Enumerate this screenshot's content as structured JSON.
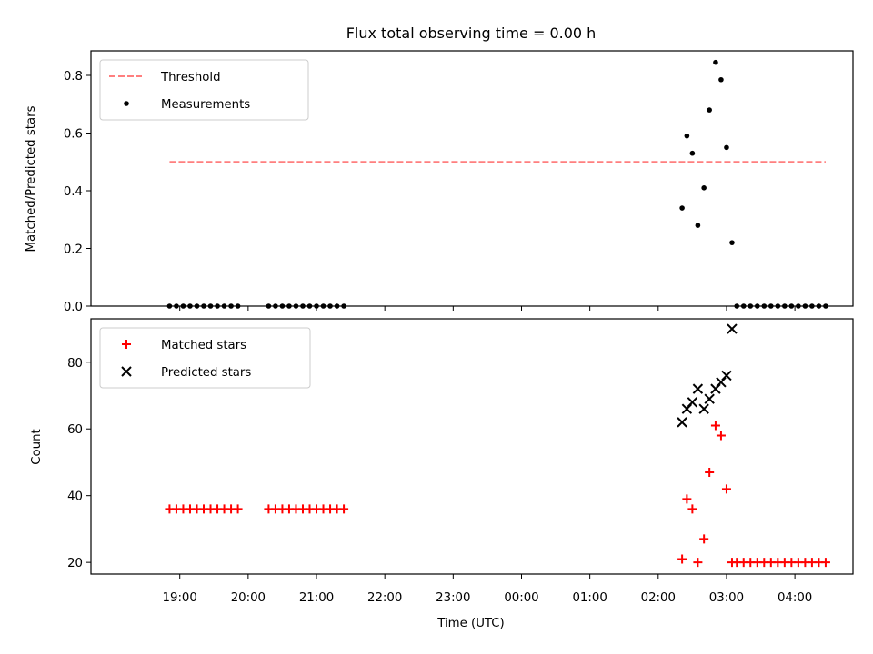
{
  "chart_data": [
    {
      "type": "scatter",
      "title": "Flux total observing time = 0.00 h",
      "xlabel": "",
      "ylabel": "Matched/Predicted stars",
      "ylim": [
        0,
        0.885
      ],
      "yticks": [
        0.0,
        0.2,
        0.4,
        0.6,
        0.8
      ],
      "ytick_labels": [
        "0.0",
        "0.2",
        "0.4",
        "0.6",
        "0.8"
      ],
      "legend": {
        "placement": "top-left",
        "entries": [
          "Threshold",
          "Measurements"
        ]
      },
      "threshold": {
        "name": "Threshold",
        "value": 0.5,
        "x_start": 18.85,
        "x_end": 28.45,
        "color": "#ff7f7f",
        "style": "dashed"
      },
      "series": [
        {
          "name": "Measurements",
          "color": "#000000",
          "marker": "dot",
          "x": [
            18.85,
            18.95,
            19.05,
            19.15,
            19.25,
            19.35,
            19.45,
            19.55,
            19.65,
            19.75,
            19.85,
            20.3,
            20.4,
            20.5,
            20.6,
            20.7,
            20.8,
            20.9,
            21.0,
            21.1,
            21.2,
            21.3,
            21.4,
            26.35,
            26.42,
            26.5,
            26.58,
            26.67,
            26.75,
            26.84,
            26.92,
            27.0,
            27.08,
            27.15,
            27.25,
            27.35,
            27.45,
            27.55,
            27.65,
            27.75,
            27.85,
            27.95,
            28.05,
            28.15,
            28.25,
            28.35,
            28.45
          ],
          "y": [
            0,
            0,
            0,
            0,
            0,
            0,
            0,
            0,
            0,
            0,
            0,
            0,
            0,
            0,
            0,
            0,
            0,
            0,
            0,
            0,
            0,
            0,
            0,
            0.34,
            0.59,
            0.53,
            0.28,
            0.41,
            0.68,
            0.845,
            0.785,
            0.55,
            0.22,
            0,
            0,
            0,
            0,
            0,
            0,
            0,
            0,
            0,
            0,
            0,
            0,
            0,
            0
          ]
        }
      ]
    },
    {
      "type": "scatter",
      "title": "",
      "xlabel": "Time (UTC)",
      "ylabel": "Count",
      "ylim": [
        16.5,
        93
      ],
      "yticks": [
        20,
        40,
        60,
        80
      ],
      "ytick_labels": [
        "20",
        "40",
        "60",
        "80"
      ],
      "xlim": [
        17.7,
        28.85
      ],
      "xticks": [
        19,
        20,
        21,
        22,
        23,
        24,
        25,
        26,
        27,
        28
      ],
      "xtick_labels": [
        "19:00",
        "20:00",
        "21:00",
        "22:00",
        "23:00",
        "00:00",
        "01:00",
        "02:00",
        "03:00",
        "04:00"
      ],
      "legend": {
        "placement": "top-left",
        "entries": [
          "Matched stars",
          "Predicted stars"
        ]
      },
      "series": [
        {
          "name": "Matched stars",
          "color": "#ff0000",
          "marker": "plus",
          "x": [
            18.85,
            18.95,
            19.05,
            19.15,
            19.25,
            19.35,
            19.45,
            19.55,
            19.65,
            19.75,
            19.85,
            20.3,
            20.4,
            20.5,
            20.6,
            20.7,
            20.8,
            20.9,
            21.0,
            21.1,
            21.2,
            21.3,
            21.4,
            26.35,
            26.42,
            26.5,
            26.58,
            26.67,
            26.75,
            26.84,
            26.92,
            27.0,
            27.08,
            27.15,
            27.25,
            27.35,
            27.45,
            27.55,
            27.65,
            27.75,
            27.85,
            27.95,
            28.05,
            28.15,
            28.25,
            28.35,
            28.45
          ],
          "y": [
            36,
            36,
            36,
            36,
            36,
            36,
            36,
            36,
            36,
            36,
            36,
            36,
            36,
            36,
            36,
            36,
            36,
            36,
            36,
            36,
            36,
            36,
            36,
            21,
            39,
            36,
            20,
            27,
            47,
            61,
            58,
            42,
            20,
            20,
            20,
            20,
            20,
            20,
            20,
            20,
            20,
            20,
            20,
            20,
            20,
            20,
            20
          ]
        },
        {
          "name": "Predicted stars",
          "color": "#000000",
          "marker": "x",
          "x": [
            26.35,
            26.42,
            26.5,
            26.58,
            26.67,
            26.75,
            26.84,
            26.92,
            27.0,
            27.08
          ],
          "y": [
            62,
            66,
            68,
            72,
            66,
            69,
            72,
            74,
            76,
            90
          ]
        }
      ]
    }
  ]
}
